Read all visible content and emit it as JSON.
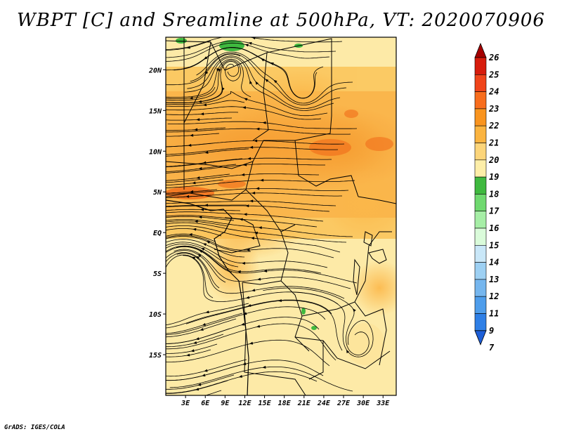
{
  "title": "WBPT [C] and Sreamline at 500hPa, VT: 2020070906",
  "credit": "GrADS: IGES/COLA",
  "map": {
    "lon_range": [
      0,
      35
    ],
    "lat_range": [
      -20,
      24
    ],
    "lon_ticks": [
      "3E",
      "6E",
      "9E",
      "12E",
      "15E",
      "18E",
      "21E",
      "24E",
      "27E",
      "30E",
      "33E"
    ],
    "lat_ticks": [
      "20N",
      "15N",
      "10N",
      "5N",
      "EQ",
      "5S",
      "10S",
      "15S"
    ],
    "background_color": "#fde9a6"
  },
  "colorbar": {
    "levels": [
      "26",
      "25",
      "24",
      "23",
      "22",
      "21",
      "20",
      "19",
      "18",
      "17",
      "16",
      "15",
      "14",
      "13",
      "12",
      "11",
      "9",
      "7"
    ],
    "colors": [
      "#a50000",
      "#d71c0c",
      "#f0441a",
      "#f86d1d",
      "#f9941f",
      "#fbb440",
      "#fcd57a",
      "#fdeea8",
      "#3fb93f",
      "#6fd96f",
      "#a6eea6",
      "#dafbda",
      "#c9e7f8",
      "#9dd0f3",
      "#75b6ee",
      "#4e9deb",
      "#2e7fe6",
      "#1d5fd8"
    ]
  }
}
